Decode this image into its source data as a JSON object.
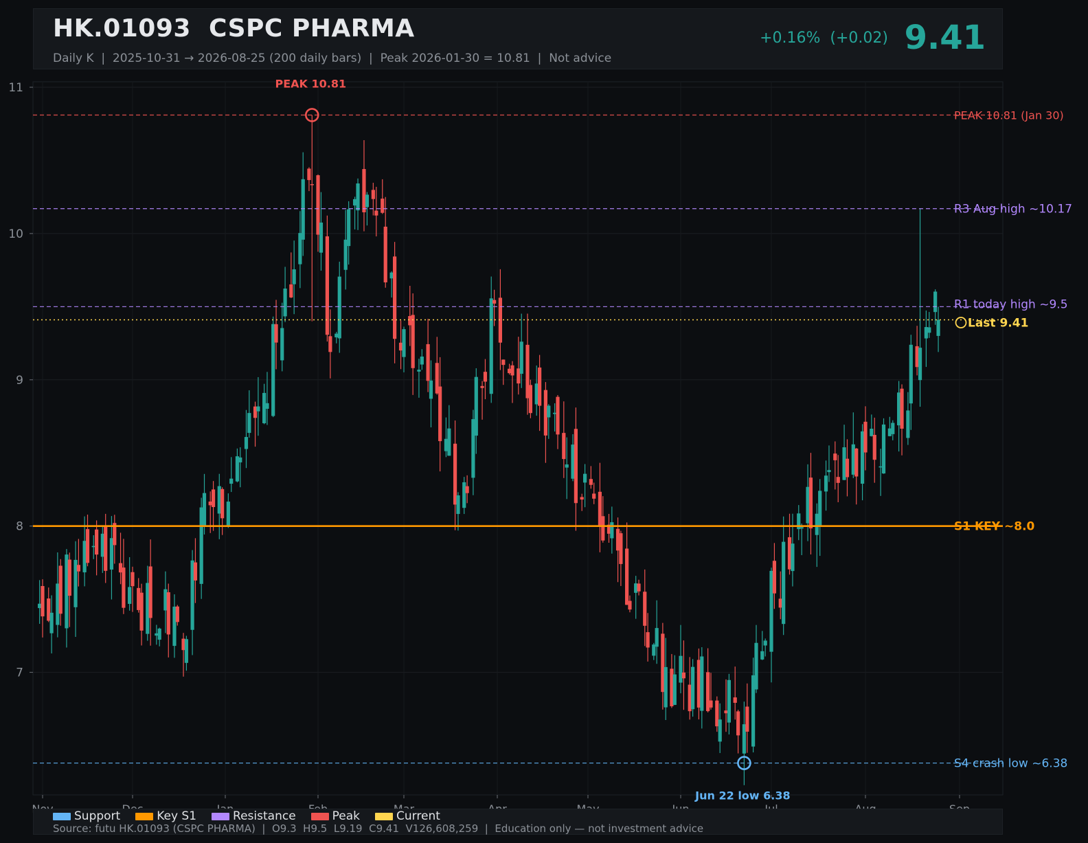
{
  "header": {
    "title": "HK.01093  CSPC PHARMA",
    "subtitle": "Daily K  |  2025-10-31 → 2026-08-25 (200 daily bars)  |  Peak 2026-01-30 = 10.81  |  Not advice",
    "change": "+0.16%  (+0.02)",
    "price": "9.41"
  },
  "legend": {
    "items": [
      {
        "label": "Support",
        "color": "#64b5f6"
      },
      {
        "label": "Key S1",
        "color": "#ff9800"
      },
      {
        "label": "Resistance",
        "color": "#b388ff"
      },
      {
        "label": "Peak",
        "color": "#ef5350"
      },
      {
        "label": "Current",
        "color": "#ffd54f"
      }
    ],
    "source": "Source: futu HK.01093 (CSPC PHARMA)  |  O9.3  H9.5  L9.19  C9.41  V126,608,259  |  Education only — not investment advice"
  },
  "colors": {
    "up": "#26a69a",
    "down": "#ef5350",
    "support": "#64b5f6",
    "key_support": "#ff9800",
    "resistance": "#b388ff",
    "peak": "#ef5350",
    "current": "#ffd54f"
  },
  "chart_data": {
    "type": "candlestick",
    "title": "HK.01093  CSPC PHARMA",
    "x_ticks": [
      "Nov",
      "Dec",
      "Jan",
      "Feb",
      "Mar",
      "Apr",
      "May",
      "Jun",
      "Jul",
      "Aug",
      "Sep"
    ],
    "x_range": [
      "2025-10-31",
      "2026-08-25"
    ],
    "y_ticks": [
      7,
      8,
      9,
      10,
      11
    ],
    "ylim": [
      6.2,
      11.05
    ],
    "grid": true,
    "bars": 200,
    "key_points": [
      {
        "date": "2025-10-31",
        "close": 7.4
      },
      {
        "date": "2025-11-20",
        "close": 7.9
      },
      {
        "date": "2025-12-05",
        "close": 7.4
      },
      {
        "date": "2025-12-18",
        "close": 7.3
      },
      {
        "date": "2025-12-24",
        "close": 8.0
      },
      {
        "date": "2026-01-05",
        "close": 8.4
      },
      {
        "date": "2026-01-15",
        "close": 9.0
      },
      {
        "date": "2026-01-22",
        "close": 9.6
      },
      {
        "date": "2026-01-30",
        "close": 10.5
      },
      {
        "date": "2026-02-05",
        "close": 9.3
      },
      {
        "date": "2026-02-12",
        "close": 10.1
      },
      {
        "date": "2026-02-19",
        "close": 10.4
      },
      {
        "date": "2026-02-26",
        "close": 9.4
      },
      {
        "date": "2026-03-10",
        "close": 8.9
      },
      {
        "date": "2026-03-20",
        "close": 8.2
      },
      {
        "date": "2026-03-30",
        "close": 9.4
      },
      {
        "date": "2026-04-10",
        "close": 9.0
      },
      {
        "date": "2026-04-20",
        "close": 8.7
      },
      {
        "date": "2026-05-01",
        "close": 8.2
      },
      {
        "date": "2026-05-10",
        "close": 7.9
      },
      {
        "date": "2026-05-20",
        "close": 7.2
      },
      {
        "date": "2026-05-28",
        "close": 7.0
      },
      {
        "date": "2026-06-08",
        "close": 6.9
      },
      {
        "date": "2026-06-22",
        "close": 6.65
      },
      {
        "date": "2026-06-30",
        "close": 7.5
      },
      {
        "date": "2026-07-08",
        "close": 7.8
      },
      {
        "date": "2026-07-20",
        "close": 8.4
      },
      {
        "date": "2026-08-03",
        "close": 8.5
      },
      {
        "date": "2026-08-12",
        "close": 8.8
      },
      {
        "date": "2026-08-20",
        "close": 9.3
      },
      {
        "date": "2026-08-25",
        "close": 9.41
      }
    ],
    "spikes": [
      {
        "date": "2026-01-30",
        "high": 10.81,
        "low": 9.4
      },
      {
        "date": "2026-06-22",
        "high": 6.8,
        "low": 6.38
      },
      {
        "date": "2026-08-20",
        "high": 10.17,
        "low": 9.2
      }
    ],
    "levels": [
      {
        "label": "PEAK 10.81 (Jan 30)",
        "value": 10.81,
        "kind": "peak",
        "style": "dashed"
      },
      {
        "label": "R3 Aug high ~10.17",
        "value": 10.17,
        "kind": "resistance",
        "style": "dashed"
      },
      {
        "label": "R1 today high ~9.5",
        "value": 9.5,
        "kind": "resistance",
        "style": "dashed"
      },
      {
        "label": "Last 9.41",
        "value": 9.41,
        "kind": "current",
        "style": "dotted"
      },
      {
        "label": "S1 KEY ~8.0",
        "value": 8.0,
        "kind": "key_support",
        "style": "solid"
      },
      {
        "label": "S4 crash low ~6.38",
        "value": 6.38,
        "kind": "support",
        "style": "dashed"
      }
    ],
    "annotations": [
      {
        "text": "PEAK 10.81",
        "date": "2026-01-30",
        "value": 10.81,
        "kind": "peak"
      },
      {
        "text": "Jun 22 low 6.38",
        "date": "2026-06-22",
        "value": 6.38,
        "kind": "support"
      }
    ],
    "last": {
      "open": 9.3,
      "high": 9.5,
      "low": 9.19,
      "close": 9.41,
      "volume": "126,608,259"
    }
  }
}
